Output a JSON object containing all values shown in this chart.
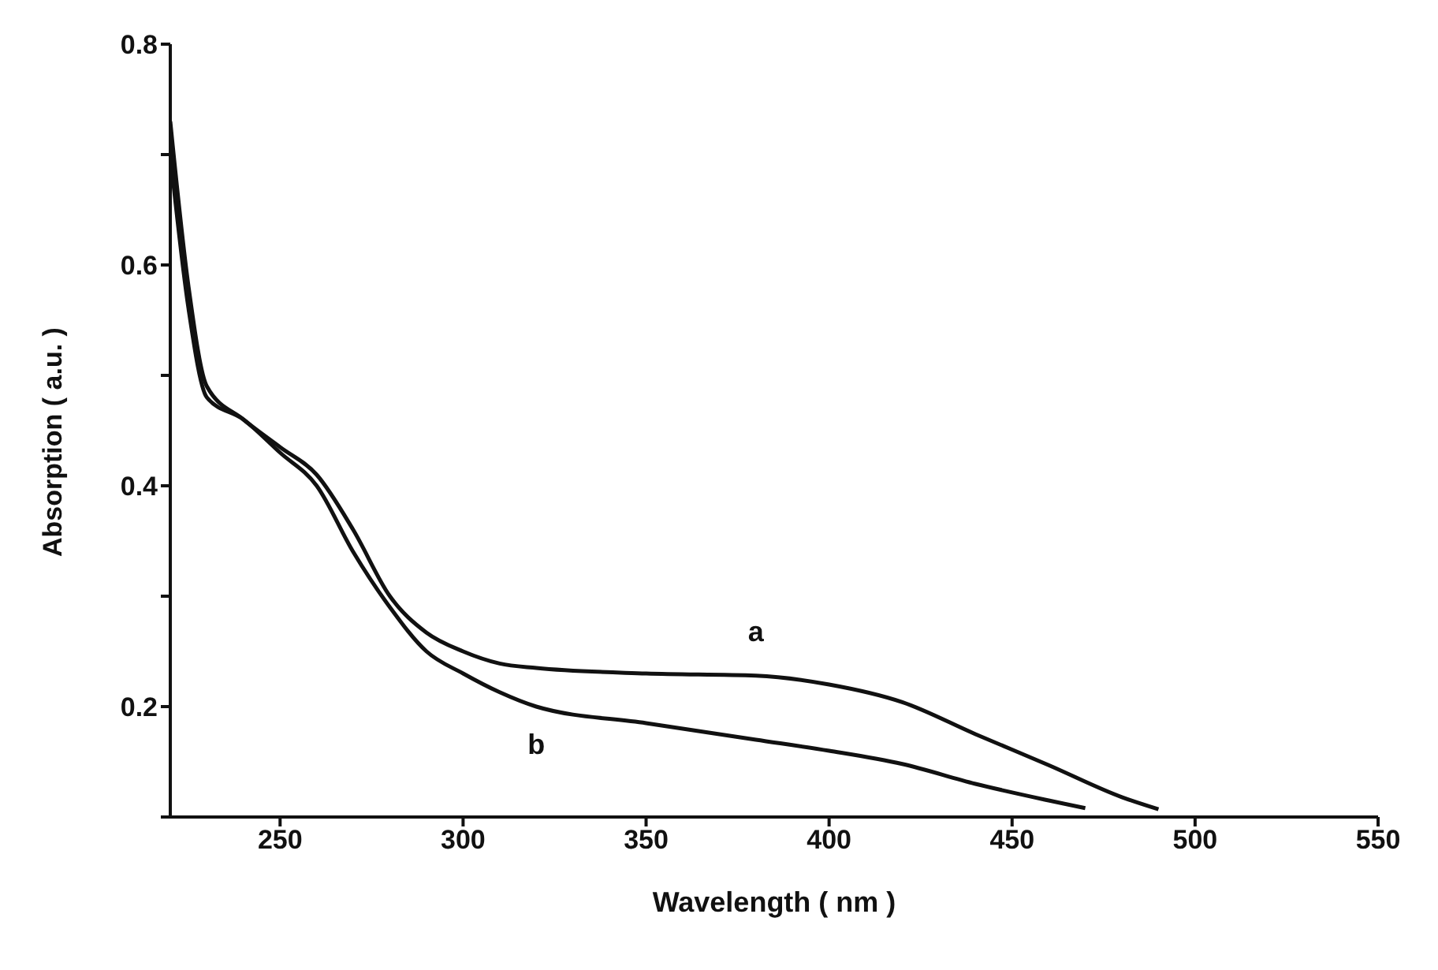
{
  "chart_data": {
    "type": "line",
    "xlabel": "Wavelength ( nm )",
    "ylabel": "Absorption ( a.u. )",
    "xlim": [
      220,
      550
    ],
    "xticks": [
      250,
      300,
      350,
      400,
      450,
      500,
      550
    ],
    "ylim": [
      0.1,
      0.8
    ],
    "yticks": [
      {
        "value": 0.1,
        "label": null
      },
      0.2,
      {
        "value": 0.3,
        "label": null
      },
      0.4,
      {
        "value": 0.5,
        "label": null
      },
      0.6,
      {
        "value": 0.7,
        "label": null
      },
      0.8
    ],
    "marker": "none",
    "line_style": "solid",
    "series": [
      {
        "name": "a",
        "color": "#111111",
        "x": [
          220,
          225,
          230,
          240,
          250,
          260,
          270,
          280,
          290,
          300,
          310,
          320,
          350,
          380,
          400,
          420,
          440,
          460,
          480,
          490
        ],
        "values": [
          0.73,
          0.58,
          0.49,
          0.46,
          0.435,
          0.41,
          0.36,
          0.3,
          0.267,
          0.25,
          0.239,
          0.235,
          0.23,
          0.228,
          0.22,
          0.204,
          0.175,
          0.147,
          0.118,
          0.107
        ]
      },
      {
        "name": "b",
        "color": "#111111",
        "x": [
          220,
          225,
          230,
          240,
          250,
          260,
          270,
          280,
          290,
          300,
          310,
          320,
          350,
          380,
          400,
          420,
          440,
          460,
          470
        ],
        "values": [
          0.7,
          0.56,
          0.48,
          0.46,
          0.43,
          0.4,
          0.34,
          0.29,
          0.25,
          0.23,
          0.213,
          0.2,
          0.185,
          0.17,
          0.16,
          0.148,
          0.13,
          0.115,
          0.108
        ]
      }
    ]
  }
}
